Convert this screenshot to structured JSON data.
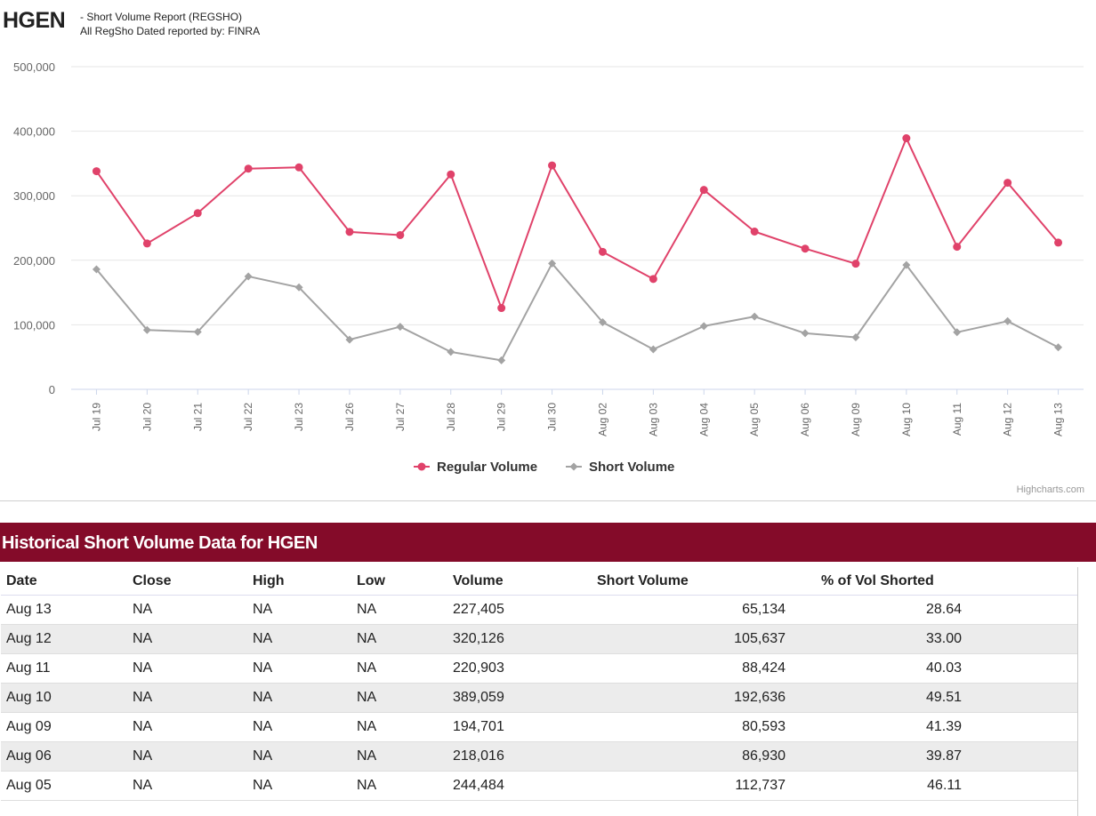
{
  "header": {
    "ticker": "HGEN",
    "subtitle_line1": "- Short Volume Report  (REGSHO)",
    "subtitle_line2": "All RegSho Dated reported by: FINRA"
  },
  "credit": "Highcharts.com",
  "chart_data": {
    "type": "line",
    "categories": [
      "Jul 19",
      "Jul 20",
      "Jul 21",
      "Jul 22",
      "Jul 23",
      "Jul 26",
      "Jul 27",
      "Jul 28",
      "Jul 29",
      "Jul 30",
      "Aug 02",
      "Aug 03",
      "Aug 04",
      "Aug 05",
      "Aug 06",
      "Aug 09",
      "Aug 10",
      "Aug 11",
      "Aug 12",
      "Aug 13"
    ],
    "ylim": [
      0,
      500000
    ],
    "yticks": [
      0,
      100000,
      200000,
      300000,
      400000,
      500000
    ],
    "ytick_labels": [
      "0",
      "100,000",
      "200,000",
      "300,000",
      "400,000",
      "500,000"
    ],
    "legend_position": "bottom-center",
    "series": [
      {
        "name": "Regular Volume",
        "color": "#e0426a",
        "marker": "circle",
        "values": [
          338000,
          226000,
          273000,
          342000,
          344000,
          244000,
          239000,
          333000,
          126000,
          347000,
          213000,
          171000,
          309000,
          244484,
          218016,
          194701,
          389059,
          220903,
          320126,
          227405
        ]
      },
      {
        "name": "Short Volume",
        "color": "#a3a3a3",
        "marker": "diamond",
        "values": [
          186000,
          92000,
          89000,
          175000,
          158000,
          77000,
          97000,
          58000,
          45000,
          195000,
          104000,
          62000,
          98000,
          112737,
          86930,
          80593,
          192636,
          88424,
          105637,
          65134
        ]
      }
    ]
  },
  "table": {
    "title": "Historical Short Volume Data for HGEN",
    "headers": [
      "Date",
      "Close",
      "High",
      "Low",
      "Volume",
      "Short Volume",
      "% of Vol Shorted"
    ],
    "rows": [
      [
        "Aug 13",
        "NA",
        "NA",
        "NA",
        "227,405",
        "65,134",
        "28.64"
      ],
      [
        "Aug 12",
        "NA",
        "NA",
        "NA",
        "320,126",
        "105,637",
        "33.00"
      ],
      [
        "Aug 11",
        "NA",
        "NA",
        "NA",
        "220,903",
        "88,424",
        "40.03"
      ],
      [
        "Aug 10",
        "NA",
        "NA",
        "NA",
        "389,059",
        "192,636",
        "49.51"
      ],
      [
        "Aug 09",
        "NA",
        "NA",
        "NA",
        "194,701",
        "80,593",
        "41.39"
      ],
      [
        "Aug 06",
        "NA",
        "NA",
        "NA",
        "218,016",
        "86,930",
        "39.87"
      ],
      [
        "Aug 05",
        "NA",
        "NA",
        "NA",
        "244,484",
        "112,737",
        "46.11"
      ]
    ]
  },
  "colors": {
    "accent": "#840b29",
    "grid": "#e6e6e6",
    "axis": "#ccd6eb"
  }
}
